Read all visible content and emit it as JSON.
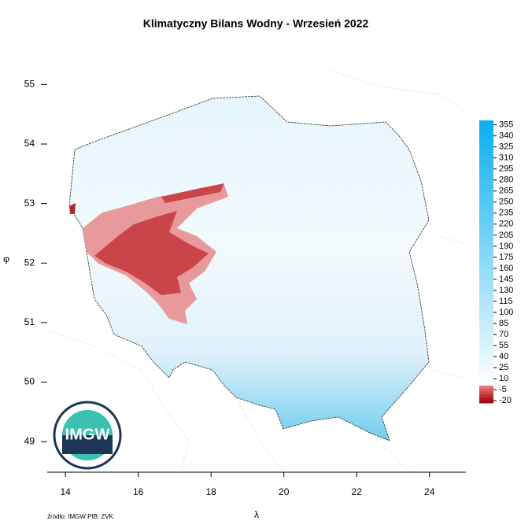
{
  "title": "Klimatyczny Bilans Wodny - Wrzesień 2022",
  "x_axis": {
    "label": "λ",
    "lim": [
      13.5,
      25
    ],
    "ticks": [
      14,
      16,
      18,
      20,
      22,
      24
    ]
  },
  "y_axis": {
    "label": "φ",
    "lim": [
      48.5,
      55.6
    ],
    "ticks": [
      49,
      50,
      51,
      52,
      53,
      54,
      55
    ]
  },
  "colorbar": {
    "lim": [
      -23,
      361
    ],
    "ticks": [
      -20,
      -5,
      10,
      25,
      40,
      55,
      70,
      85,
      100,
      115,
      130,
      145,
      160,
      175,
      190,
      205,
      220,
      235,
      250,
      265,
      280,
      295,
      310,
      325,
      340,
      355
    ]
  },
  "logo": "IMGW",
  "source": "źródło: IMGW PIB: ZVK"
}
